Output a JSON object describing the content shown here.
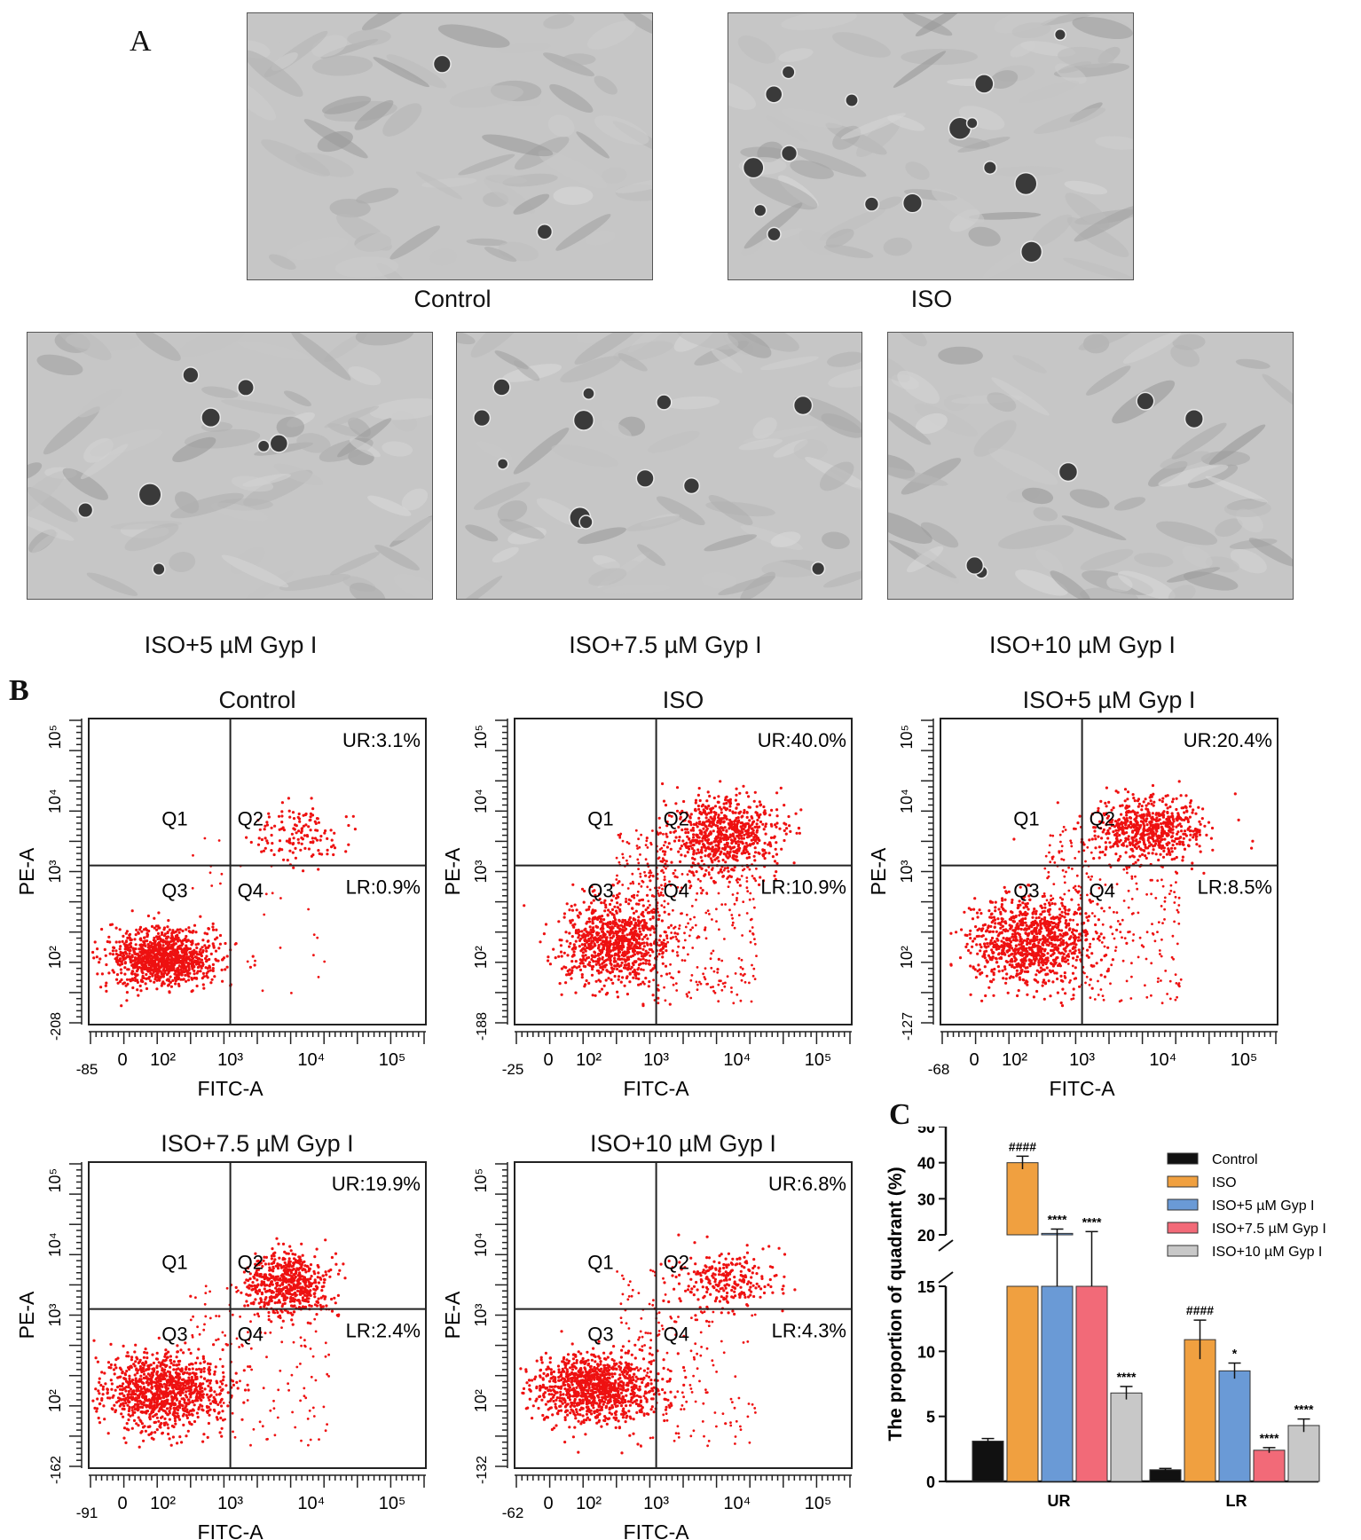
{
  "panels": {
    "a": "A",
    "b": "B",
    "c": "C"
  },
  "micrographs": [
    {
      "id": "control",
      "caption": "Control",
      "dark_cells": 2
    },
    {
      "id": "iso",
      "caption": "ISO",
      "dark_cells": 16
    },
    {
      "id": "iso5",
      "caption": "ISO+5 µM Gyp I",
      "dark_cells": 8
    },
    {
      "id": "iso75",
      "caption": "ISO+7.5 µM Gyp I",
      "dark_cells": 12
    },
    {
      "id": "iso10",
      "caption": "ISO+10 µM Gyp I",
      "dark_cells": 5
    }
  ],
  "flow_common": {
    "xlabel": "FITC-A",
    "ylabel": "PE-A",
    "quadrants": [
      "Q1",
      "Q2",
      "Q3",
      "Q4"
    ],
    "x_ticks": [
      "0",
      "10²",
      "10³",
      "10⁴",
      "10⁵"
    ],
    "y_ticks": [
      "10²",
      "10³",
      "10⁴",
      "10⁵"
    ],
    "dot_color": "#ee1111"
  },
  "flow_plots": [
    {
      "title": "Control",
      "ur": "UR:3.1%",
      "lr": "LR:0.9%",
      "x_min": "-85",
      "y_min": "-208"
    },
    {
      "title": "ISO",
      "ur": "UR:40.0%",
      "lr": "LR:10.9%",
      "x_min": "-25",
      "y_min": "-188"
    },
    {
      "title": "ISO+5 µM Gyp I",
      "ur": "UR:20.4%",
      "lr": "LR:8.5%",
      "x_min": "-68",
      "y_min": "-127"
    },
    {
      "title": "ISO+7.5 µM Gyp I",
      "ur": "UR:19.9%",
      "lr": "LR:2.4%",
      "x_min": "-91",
      "y_min": "-162"
    },
    {
      "title": "ISO+10 µM Gyp I",
      "ur": "UR:6.8%",
      "lr": "LR:4.3%",
      "x_min": "-62",
      "y_min": "-132"
    }
  ],
  "chart_data": {
    "type": "bar",
    "title": "",
    "ylabel": "The proportion of quadrant (%)",
    "xlabel": "",
    "categories": [
      "UR",
      "LR"
    ],
    "y_axis_break": [
      15,
      20
    ],
    "ylim": [
      0,
      50
    ],
    "y_ticks": [
      0,
      5,
      10,
      15,
      20,
      30,
      40,
      50
    ],
    "series": [
      {
        "name": "Control",
        "color": "#111111",
        "values": [
          3.1,
          0.9
        ],
        "errors": [
          0.2,
          0.1
        ],
        "marks": [
          "",
          ""
        ]
      },
      {
        "name": "ISO",
        "color": "#f0a040",
        "values": [
          40.0,
          10.9
        ],
        "errors": [
          1.8,
          1.5
        ],
        "marks": [
          "####",
          "####"
        ]
      },
      {
        "name": "ISO+5 µM Gyp I",
        "color": "#6a9ad6",
        "values": [
          20.4,
          8.5
        ],
        "errors": [
          1.2,
          0.6
        ],
        "marks": [
          "****",
          "*"
        ]
      },
      {
        "name": "ISO+7.5 µM Gyp I",
        "color": "#f26a78",
        "values": [
          19.9,
          2.4
        ],
        "errors": [
          1.0,
          0.2
        ],
        "marks": [
          "****",
          "****"
        ]
      },
      {
        "name": "ISO+10 µM Gyp I",
        "color": "#c8c8c8",
        "values": [
          6.8,
          4.3
        ],
        "errors": [
          0.5,
          0.5
        ],
        "marks": [
          "****",
          "****"
        ]
      }
    ]
  }
}
